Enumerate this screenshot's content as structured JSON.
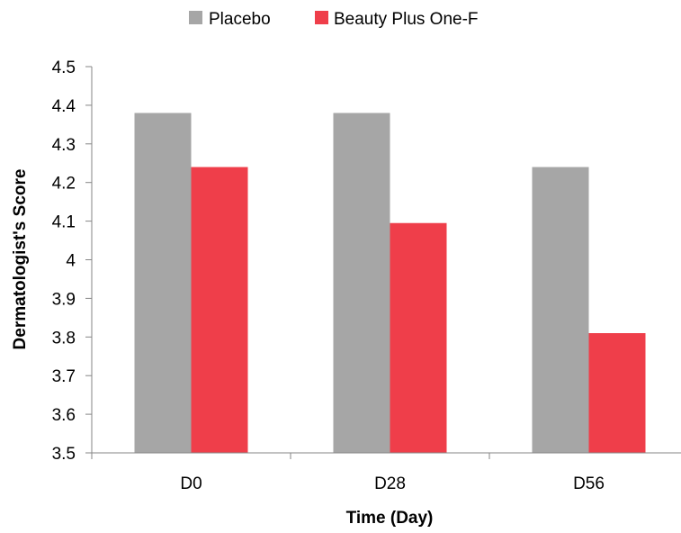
{
  "chart_data": {
    "type": "bar",
    "title": "",
    "xlabel": "Time (Day)",
    "ylabel": "Dermatologist's Score",
    "categories": [
      "D0",
      "D28",
      "D56"
    ],
    "series": [
      {
        "name": "Placebo",
        "color": "#a6a6a6",
        "values": [
          4.38,
          4.38,
          4.24
        ]
      },
      {
        "name": "Beauty Plus One-F",
        "color": "#ef3e4a",
        "values": [
          4.24,
          4.095,
          3.81
        ]
      }
    ],
    "ylim": [
      3.5,
      4.5
    ],
    "yticks": [
      "3.5",
      "3.6",
      "3.7",
      "3.8",
      "3.9",
      "4",
      "4.1",
      "4.2",
      "4.3",
      "4.4",
      "4.5"
    ],
    "grid": false,
    "legend_position": "top-center"
  }
}
